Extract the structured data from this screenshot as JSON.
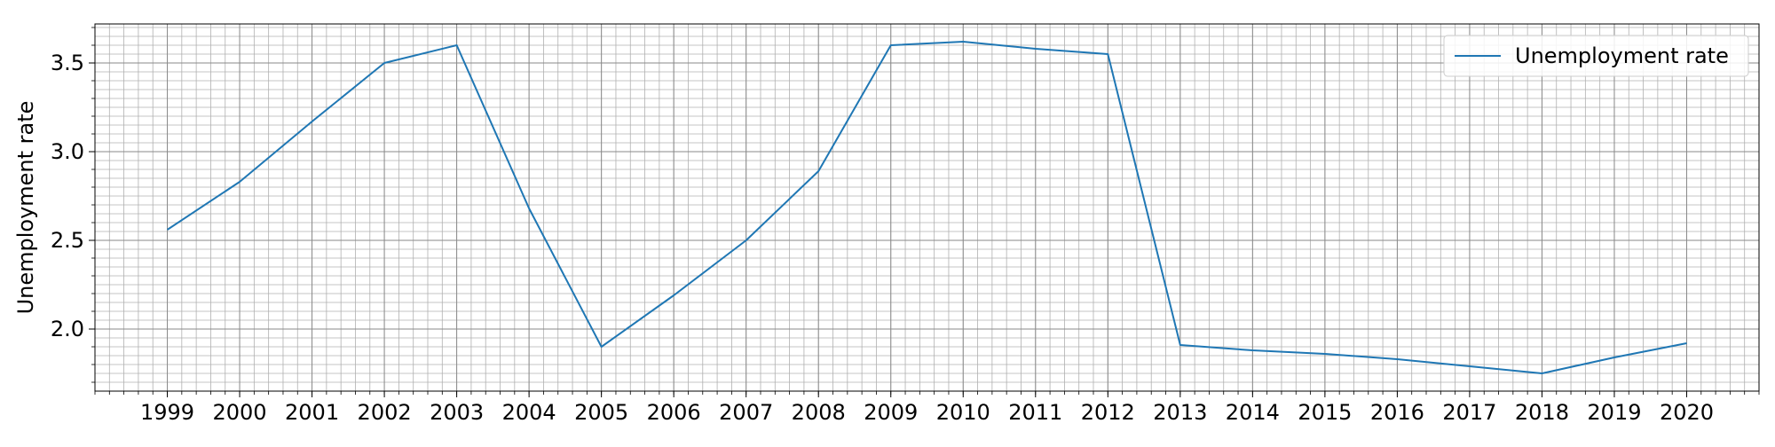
{
  "chart_data": {
    "type": "line",
    "title": "",
    "xlabel": "",
    "ylabel": "Unemployment rate",
    "x": [
      "1999",
      "2000",
      "2001",
      "2002",
      "2003",
      "2004",
      "2005",
      "2006",
      "2007",
      "2008",
      "2009",
      "2010",
      "2011",
      "2012",
      "2013",
      "2014",
      "2015",
      "2016",
      "2017",
      "2018",
      "2019",
      "2020"
    ],
    "series": [
      {
        "name": "Unemployment rate",
        "values": [
          2.56,
          2.83,
          3.17,
          3.5,
          3.6,
          2.68,
          1.9,
          2.19,
          2.5,
          2.89,
          3.6,
          3.62,
          3.58,
          3.55,
          1.91,
          1.88,
          1.86,
          1.83,
          1.79,
          1.75,
          1.84,
          1.92
        ],
        "color": "#1f77b4"
      }
    ],
    "y_ticks": [
      "2.0",
      "2.5",
      "3.0",
      "3.5"
    ],
    "y_tick_values": [
      2.0,
      2.5,
      3.0,
      3.5
    ],
    "xlim": [
      1998,
      2021
    ],
    "ylim": [
      1.65,
      3.72
    ],
    "grid": "major-and-minor",
    "legend": "top-right"
  }
}
